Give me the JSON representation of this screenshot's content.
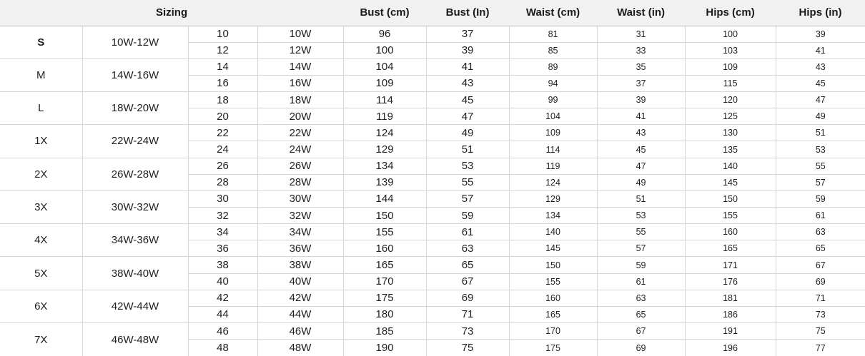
{
  "chart_data": {
    "type": "table",
    "title": "Sizing",
    "headers": {
      "sizing": "Sizing",
      "bust_cm": "Bust (cm)",
      "bust_in": "Bust (In)",
      "waist_cm": "Waist (cm)",
      "waist_in": "Waist (in)",
      "hips_cm": "Hips (cm)",
      "hips_in": "Hips (in)"
    },
    "column_meaning_per_row": [
      "size-number",
      "size-w",
      "bust-cm",
      "bust-in",
      "waist-cm",
      "waist-in",
      "hips-cm",
      "hips-in"
    ],
    "groups": [
      {
        "size": "S",
        "range": "10W-12W",
        "rows": [
          [
            "10",
            "10W",
            "96",
            "37",
            "81",
            "31",
            "100",
            "39"
          ],
          [
            "12",
            "12W",
            "100",
            "39",
            "85",
            "33",
            "103",
            "41"
          ]
        ]
      },
      {
        "size": "M",
        "range": "14W-16W",
        "rows": [
          [
            "14",
            "14W",
            "104",
            "41",
            "89",
            "35",
            "109",
            "43"
          ],
          [
            "16",
            "16W",
            "109",
            "43",
            "94",
            "37",
            "115",
            "45"
          ]
        ]
      },
      {
        "size": "L",
        "range": "18W-20W",
        "rows": [
          [
            "18",
            "18W",
            "114",
            "45",
            "99",
            "39",
            "120",
            "47"
          ],
          [
            "20",
            "20W",
            "119",
            "47",
            "104",
            "41",
            "125",
            "49"
          ]
        ]
      },
      {
        "size": "1X",
        "range": "22W-24W",
        "rows": [
          [
            "22",
            "22W",
            "124",
            "49",
            "109",
            "43",
            "130",
            "51"
          ],
          [
            "24",
            "24W",
            "129",
            "51",
            "114",
            "45",
            "135",
            "53"
          ]
        ]
      },
      {
        "size": "2X",
        "range": "26W-28W",
        "rows": [
          [
            "26",
            "26W",
            "134",
            "53",
            "119",
            "47",
            "140",
            "55"
          ],
          [
            "28",
            "28W",
            "139",
            "55",
            "124",
            "49",
            "145",
            "57"
          ]
        ]
      },
      {
        "size": "3X",
        "range": "30W-32W",
        "rows": [
          [
            "30",
            "30W",
            "144",
            "57",
            "129",
            "51",
            "150",
            "59"
          ],
          [
            "32",
            "32W",
            "150",
            "59",
            "134",
            "53",
            "155",
            "61"
          ]
        ]
      },
      {
        "size": "4X",
        "range": "34W-36W",
        "rows": [
          [
            "34",
            "34W",
            "155",
            "61",
            "140",
            "55",
            "160",
            "63"
          ],
          [
            "36",
            "36W",
            "160",
            "63",
            "145",
            "57",
            "165",
            "65"
          ]
        ]
      },
      {
        "size": "5X",
        "range": "38W-40W",
        "rows": [
          [
            "38",
            "38W",
            "165",
            "65",
            "150",
            "59",
            "171",
            "67"
          ],
          [
            "40",
            "40W",
            "170",
            "67",
            "155",
            "61",
            "176",
            "69"
          ]
        ]
      },
      {
        "size": "6X",
        "range": "42W-44W",
        "rows": [
          [
            "42",
            "42W",
            "175",
            "69",
            "160",
            "63",
            "181",
            "71"
          ],
          [
            "44",
            "44W",
            "180",
            "71",
            "165",
            "65",
            "186",
            "73"
          ]
        ]
      },
      {
        "size": "7X",
        "range": "46W-48W",
        "rows": [
          [
            "46",
            "46W",
            "185",
            "73",
            "170",
            "67",
            "191",
            "75"
          ],
          [
            "48",
            "48W",
            "190",
            "75",
            "175",
            "69",
            "196",
            "77"
          ]
        ]
      }
    ],
    "colors": {
      "header_background": "#f1f1f1",
      "grid_border": "#d6d6d6",
      "header_bottom_border": "#bdbdbd",
      "text": "#1f1f1f"
    }
  }
}
